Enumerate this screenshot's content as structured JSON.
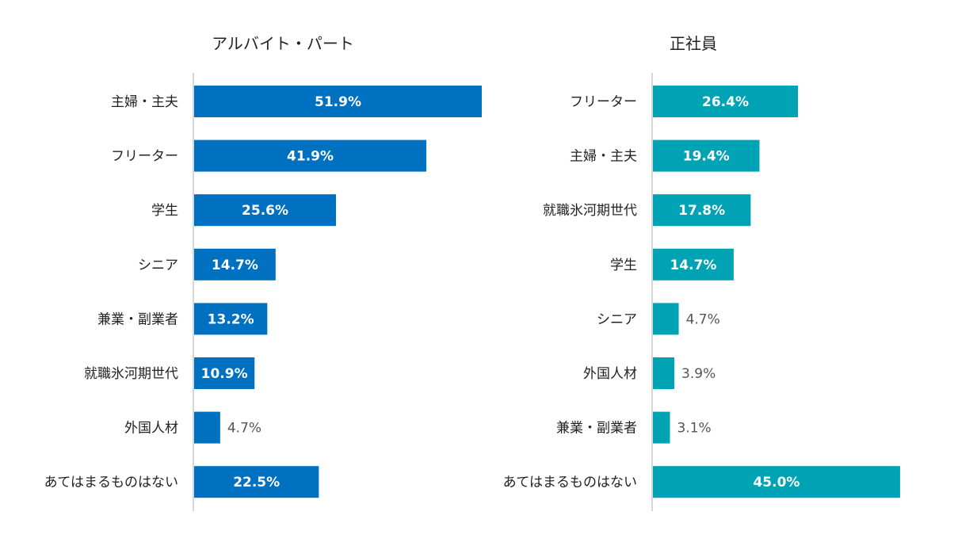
{
  "chart_data": [
    {
      "type": "bar",
      "orientation": "horizontal",
      "title": "アルバイト・パート",
      "color": "#0070C0",
      "categories": [
        "主婦・主夫",
        "フリーター",
        "学生",
        "シニア",
        "兼業・副業者",
        "就職氷河期世代",
        "外国人材",
        "あてはまるものはない"
      ],
      "values": [
        51.9,
        41.9,
        25.6,
        14.7,
        13.2,
        10.9,
        4.7,
        22.5
      ],
      "value_labels": [
        "51.9%",
        "41.9%",
        "25.6%",
        "14.7%",
        "13.2%",
        "10.9%",
        "4.7%",
        "22.5%"
      ],
      "xlim": [
        0,
        55
      ]
    },
    {
      "type": "bar",
      "orientation": "horizontal",
      "title": "正社員",
      "color": "#00A3B4",
      "categories": [
        "フリーター",
        "主婦・主夫",
        "就職氷河期世代",
        "学生",
        "シニア",
        "外国人材",
        "兼業・副業者",
        "あてはまるものはない"
      ],
      "values": [
        26.4,
        19.4,
        17.8,
        14.7,
        4.7,
        3.9,
        3.1,
        45.0
      ],
      "value_labels": [
        "26.4%",
        "19.4%",
        "17.8%",
        "14.7%",
        "4.7%",
        "3.9%",
        "3.1%",
        "45.0%"
      ],
      "xlim": [
        0,
        48
      ]
    }
  ]
}
